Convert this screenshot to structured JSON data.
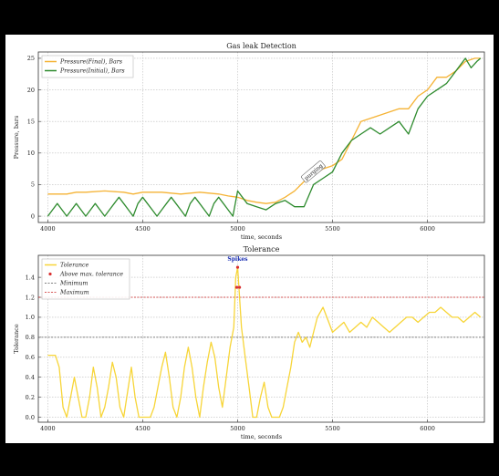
{
  "chart_data": [
    {
      "type": "line",
      "title": "Gas leak Detection",
      "xlabel": "time, seconds",
      "ylabel": "Pressure, bars",
      "xlim": [
        3950,
        6300
      ],
      "ylim": [
        -1,
        26
      ],
      "xticks": [
        4000,
        4500,
        5000,
        5500,
        6000
      ],
      "yticks": [
        0,
        5,
        10,
        15,
        20,
        25
      ],
      "grid": true,
      "legend": "top-left",
      "annotation": {
        "text": "purging",
        "x": 5400,
        "y": 7
      },
      "series": [
        {
          "name": "Pressure(Final), Bars",
          "color": "#f5b335",
          "x": [
            4000,
            4100,
            4150,
            4200,
            4300,
            4400,
            4450,
            4500,
            4600,
            4700,
            4800,
            4900,
            4950,
            5000,
            5050,
            5100,
            5150,
            5200,
            5250,
            5300,
            5350,
            5400,
            5450,
            5500,
            5550,
            5600,
            5650,
            5700,
            5750,
            5800,
            5850,
            5900,
            5950,
            6000,
            6050,
            6100,
            6150,
            6200,
            6250,
            6280
          ],
          "y": [
            3.5,
            3.5,
            3.8,
            3.8,
            4,
            3.8,
            3.5,
            3.8,
            3.8,
            3.5,
            3.8,
            3.5,
            3.2,
            3,
            2.5,
            2.2,
            2,
            2.2,
            3,
            4,
            5.5,
            6.5,
            7.5,
            8,
            9,
            12,
            15,
            15.5,
            16,
            16.5,
            17,
            17,
            19,
            20,
            22,
            22,
            23,
            24.5,
            25,
            25
          ]
        },
        {
          "name": "Pressure(Initial), Bars",
          "color": "#2e8b2e",
          "x": [
            4000,
            4025,
            4050,
            4075,
            4100,
            4125,
            4150,
            4175,
            4200,
            4225,
            4250,
            4275,
            4300,
            4325,
            4350,
            4375,
            4400,
            4425,
            4450,
            4475,
            4500,
            4525,
            4550,
            4575,
            4600,
            4625,
            4650,
            4675,
            4700,
            4725,
            4750,
            4775,
            4800,
            4825,
            4850,
            4875,
            4900,
            4925,
            4950,
            4975,
            5000,
            5025,
            5050,
            5100,
            5150,
            5200,
            5250,
            5300,
            5350,
            5400,
            5450,
            5500,
            5550,
            5600,
            5650,
            5700,
            5750,
            5800,
            5850,
            5900,
            5950,
            6000,
            6050,
            6100,
            6150,
            6200,
            6230,
            6260,
            6280
          ],
          "y": [
            0,
            1,
            2,
            1,
            0,
            1,
            2,
            1,
            0,
            1,
            2,
            1,
            0,
            1,
            2,
            3,
            2,
            1,
            0,
            2,
            3,
            2,
            1,
            0,
            1,
            2,
            3,
            2,
            1,
            0,
            2,
            3,
            2,
            1,
            0,
            2,
            3,
            2,
            1,
            0,
            4,
            3,
            2,
            1.5,
            1,
            2,
            2.5,
            1.5,
            1.5,
            5,
            6,
            7,
            10,
            12,
            13,
            14,
            13,
            14,
            15,
            13,
            17,
            19,
            20,
            21,
            23,
            25,
            23.5,
            24.5,
            25
          ]
        }
      ]
    },
    {
      "type": "line",
      "title": "Tolerance",
      "xlabel": "time, seconds",
      "ylabel": "Tolerance",
      "xlim": [
        3950,
        6300
      ],
      "ylim": [
        -0.05,
        1.62
      ],
      "xticks": [
        4000,
        4500,
        5000,
        5500,
        6000
      ],
      "yticks": [
        0.0,
        0.2,
        0.4,
        0.6,
        0.8,
        1.0,
        1.2,
        1.4
      ],
      "ytick_labels": [
        "0.0",
        "0.2",
        "0.4",
        "0.6",
        "0.8",
        "1.0",
        "1.2",
        "1.4"
      ],
      "grid": true,
      "legend": "top-left",
      "minimum": 0.8,
      "maximum": 1.2,
      "spike_label": "Spikes",
      "series": [
        {
          "name": "Tolerance",
          "color": "#f7d538",
          "x": [
            4000,
            4040,
            4060,
            4080,
            4100,
            4120,
            4140,
            4160,
            4180,
            4200,
            4220,
            4240,
            4260,
            4280,
            4300,
            4320,
            4340,
            4360,
            4380,
            4400,
            4420,
            4440,
            4460,
            4480,
            4500,
            4520,
            4540,
            4560,
            4580,
            4600,
            4620,
            4640,
            4660,
            4680,
            4700,
            4720,
            4740,
            4760,
            4780,
            4800,
            4820,
            4840,
            4860,
            4880,
            4900,
            4920,
            4940,
            4960,
            4980,
            4990,
            5000,
            5010,
            5020,
            5040,
            5060,
            5080,
            5100,
            5120,
            5140,
            5160,
            5180,
            5200,
            5220,
            5240,
            5260,
            5280,
            5300,
            5320,
            5340,
            5360,
            5380,
            5400,
            5420,
            5450,
            5480,
            5500,
            5530,
            5560,
            5590,
            5620,
            5650,
            5680,
            5710,
            5740,
            5770,
            5800,
            5830,
            5860,
            5890,
            5920,
            5950,
            5980,
            6010,
            6040,
            6070,
            6100,
            6130,
            6160,
            6190,
            6220,
            6250,
            6280
          ],
          "y": [
            0.62,
            0.62,
            0.5,
            0.1,
            0,
            0.2,
            0.4,
            0.2,
            0,
            0,
            0.2,
            0.5,
            0.3,
            0,
            0.1,
            0.3,
            0.55,
            0.4,
            0.1,
            0,
            0.25,
            0.5,
            0.2,
            0,
            0,
            0,
            0,
            0.1,
            0.3,
            0.5,
            0.65,
            0.4,
            0.1,
            0,
            0.2,
            0.5,
            0.7,
            0.5,
            0.2,
            0,
            0.3,
            0.55,
            0.75,
            0.6,
            0.3,
            0.1,
            0.4,
            0.7,
            0.9,
            1.4,
            1.5,
            1.2,
            0.9,
            0.6,
            0.3,
            0,
            0,
            0.2,
            0.35,
            0.1,
            0,
            0,
            0,
            0.1,
            0.3,
            0.5,
            0.75,
            0.85,
            0.75,
            0.8,
            0.7,
            0.85,
            1.0,
            1.1,
            0.95,
            0.85,
            0.9,
            0.95,
            0.85,
            0.9,
            0.95,
            0.9,
            1.0,
            0.95,
            0.9,
            0.85,
            0.9,
            0.95,
            1.0,
            1.0,
            0.95,
            1.0,
            1.05,
            1.05,
            1.1,
            1.05,
            1.0,
            1.0,
            0.95,
            1.0,
            1.05,
            1.0
          ]
        },
        {
          "name": "Above max. tolerance",
          "color": "#d93030",
          "x": [
            5000,
            4995,
            5010
          ],
          "y": [
            1.5,
            1.3,
            1.3
          ]
        },
        {
          "name": "Minimum",
          "color": "#555555",
          "y": [
            0.8
          ]
        },
        {
          "name": "Maximum",
          "color": "#cc2222",
          "y": [
            1.2
          ]
        }
      ]
    }
  ]
}
